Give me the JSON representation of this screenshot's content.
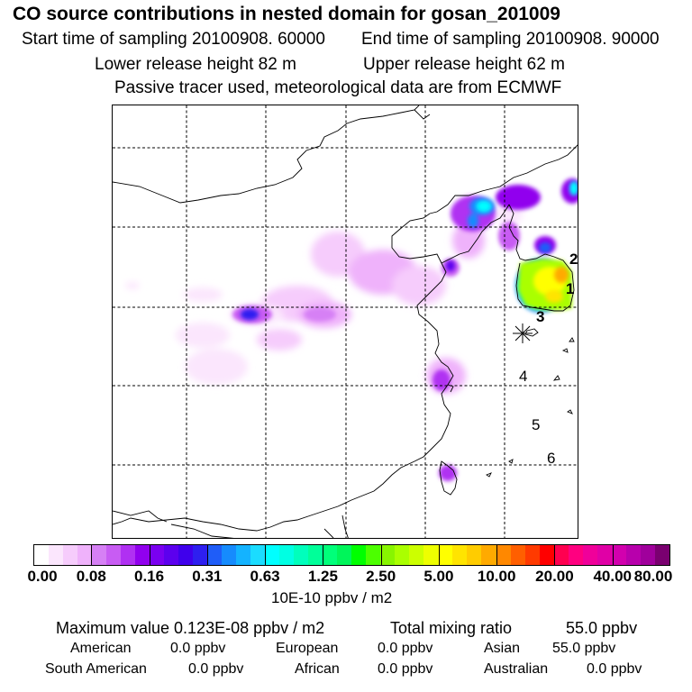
{
  "header": {
    "title": "CO  source contributions in nested domain for gosan_201009",
    "start_label": "Start time of sampling 20100908. 60000",
    "end_label": "End time of sampling 20100908. 90000",
    "lower_label": "Lower release height   82 m",
    "upper_label": "Upper release height   62 m",
    "tracer_label": "Passive tracer used, meteorological data are from ECMWF"
  },
  "map": {
    "site_markers": [
      "1",
      "2",
      "3",
      "4",
      "5",
      "6"
    ]
  },
  "colorbar": {
    "tick_labels": [
      "0.00",
      "0.08",
      "0.16",
      "0.31",
      "0.63",
      "1.25",
      "2.50",
      "5.00",
      "10.00",
      "20.00",
      "40.00",
      "80.00"
    ],
    "unit_label": "10E-10 ppbv / m2",
    "colors": [
      "#ffffff",
      "#fbe6fd",
      "#f6ccfc",
      "#efb2fb",
      "#d680f5",
      "#c85cf3",
      "#b030f2",
      "#9100ee",
      "#7a00f0",
      "#5c00ee",
      "#3f00ec",
      "#2e1ff0",
      "#1f5df8",
      "#168bfd",
      "#14b3ff",
      "#1bdcff",
      "#00ffff",
      "#00ffe3",
      "#00ffbc",
      "#00ff99",
      "#00ff7a",
      "#00f55a",
      "#00ff00",
      "#4cff00",
      "#88f500",
      "#aaff00",
      "#ccff00",
      "#eeff00",
      "#ffff00",
      "#ffe400",
      "#ffcc00",
      "#ffaa00",
      "#ff8800",
      "#ff5f00",
      "#ff3a00",
      "#ff0000",
      "#ff0050",
      "#ff0080",
      "#f0009a",
      "#e000a6",
      "#d200ae",
      "#b800ac",
      "#a0009c",
      "#7a0070"
    ]
  },
  "stats": {
    "max_label": "Maximum value  0.123E-08 ppbv / m2",
    "total_label": "Total mixing ratio",
    "total_value": "55.0 ppbv",
    "regions": [
      {
        "name": "American",
        "value": "0.0 ppbv"
      },
      {
        "name": "European",
        "value": "0.0 ppbv"
      },
      {
        "name": "Asian",
        "value": "55.0 ppbv"
      },
      {
        "name": "South American",
        "value": "0.0 ppbv"
      },
      {
        "name": "African",
        "value": "0.0 ppbv"
      },
      {
        "name": "Australian",
        "value": "0.0 ppbv"
      }
    ]
  }
}
